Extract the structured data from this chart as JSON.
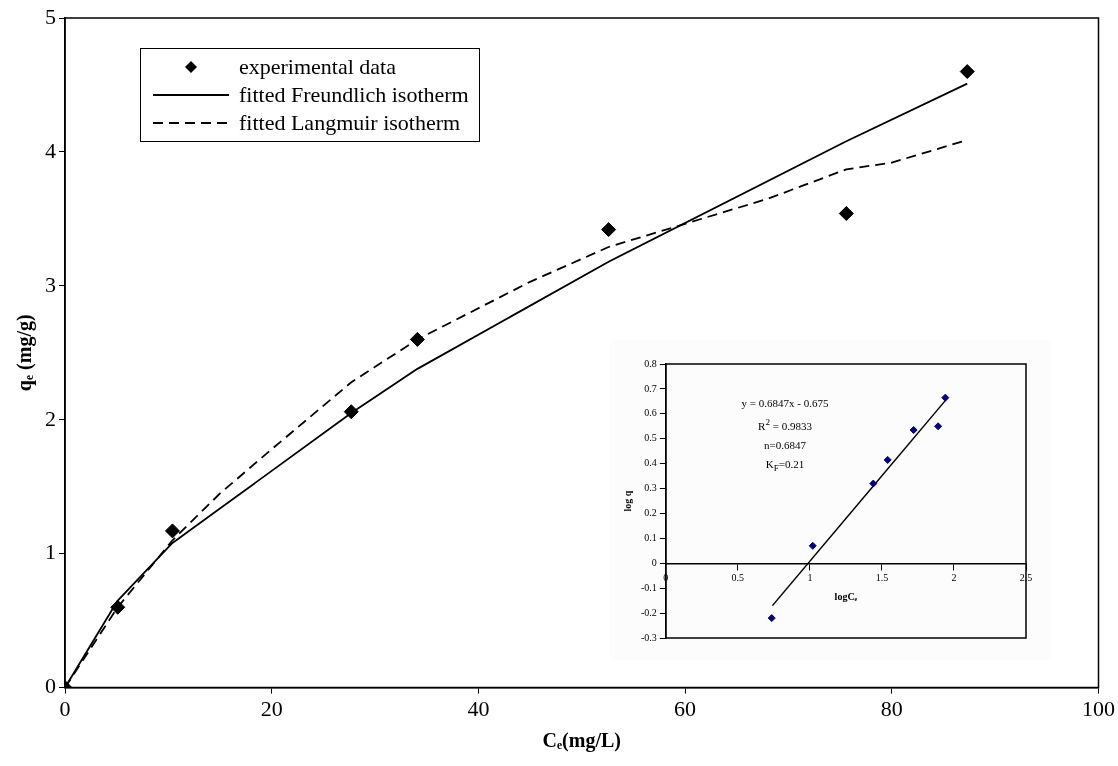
{
  "chart_data": [
    {
      "type": "scatter",
      "xlabel": "Cₑ(mg/L)",
      "ylabel": "qₑ (mg/g)",
      "xlim": [
        0,
        100
      ],
      "ylim": [
        0,
        5
      ],
      "xticks": [
        0,
        20,
        40,
        60,
        80,
        100
      ],
      "yticks": [
        0,
        1,
        2,
        3,
        4,
        5
      ],
      "grid": false,
      "legend": "top left",
      "series": [
        {
          "name": "experimental data",
          "type": "scatter",
          "color": "#000000",
          "marker": "diamond",
          "x": [
            0,
            5.1,
            10.4,
            27.7,
            34.1,
            52.6,
            75.6,
            87.3
          ],
          "values": [
            0,
            0.6,
            1.17,
            2.06,
            2.6,
            3.42,
            3.54,
            4.6
          ]
        },
        {
          "name": "fitted Freundlich isotherm",
          "type": "line",
          "color": "#000000",
          "line_style": "solid",
          "marker": "none",
          "x": [
            0,
            5.1,
            10.4,
            27.7,
            34.1,
            52.6,
            75.6,
            87.3
          ],
          "values": [
            0,
            0.65,
            1.08,
            2.05,
            2.38,
            3.18,
            4.08,
            4.51
          ]
        },
        {
          "name": "fitted Langmuir isotherm",
          "type": "line",
          "color": "#000000",
          "line_style": "dashed",
          "marker": "none",
          "x": [
            0,
            5.1,
            10.4,
            15,
            20,
            27.7,
            34.1,
            45,
            52.6,
            62,
            68,
            75.6,
            80,
            86.9
          ],
          "values": [
            0,
            0.6,
            1.1,
            1.45,
            1.78,
            2.28,
            2.6,
            3.03,
            3.29,
            3.51,
            3.65,
            3.87,
            3.92,
            4.08
          ]
        }
      ]
    },
    {
      "type": "scatter",
      "xlabel": "logCₑ",
      "ylabel": "log q",
      "xlim": [
        0,
        2.5
      ],
      "ylim": [
        -0.3,
        0.8
      ],
      "xticks": [
        0,
        0.5,
        1,
        1.5,
        2,
        2.5
      ],
      "yticks": [
        -0.3,
        -0.2,
        -0.1,
        0,
        0.1,
        0.2,
        0.3,
        0.4,
        0.5,
        0.6,
        0.7,
        0.8
      ],
      "grid": false,
      "legend": false,
      "annotations": [
        "y = 0.6847x - 0.675",
        "R$^{2}$ = 0.9833",
        "n=0.6847",
        "K$_{F}$=0.21"
      ],
      "series": [
        {
          "type": "scatter",
          "color": "#000080",
          "marker": "diamond",
          "x": [
            0.735,
            1.02,
            1.44,
            1.54,
            1.72,
            1.89,
            1.94
          ],
          "values": [
            -0.22,
            0.07,
            0.32,
            0.415,
            0.535,
            0.55,
            0.665
          ]
        },
        {
          "type": "line",
          "color": "#000000",
          "line_style": "solid",
          "marker": "none",
          "x": [
            0.74,
            1.95
          ],
          "values": [
            -0.17,
            0.66
          ]
        }
      ]
    }
  ]
}
